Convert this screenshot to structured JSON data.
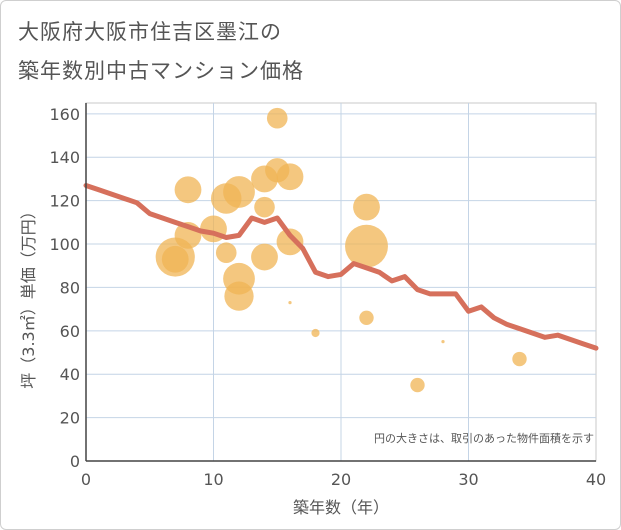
{
  "title": {
    "line1": "大阪府大阪市住吉区墨江の",
    "line2": "築年数別中古マンション価格"
  },
  "colors": {
    "bubble": "#f0b454",
    "line": "#d6705c",
    "grid": "#c4d4e6",
    "plot_border": "#c8c8c8",
    "text": "#555555"
  },
  "chart_data": {
    "type": "scatter",
    "xlabel": "築年数（年）",
    "ylabel": "坪（3.3㎡）単価（万円）",
    "xlim": [
      0,
      40
    ],
    "ylim": [
      0,
      165
    ],
    "xticks": [
      0,
      10,
      20,
      30,
      40
    ],
    "yticks": [
      0,
      20,
      40,
      60,
      80,
      100,
      120,
      140,
      160
    ],
    "grid": true,
    "note": "円の大きさは、取引のあった物件面積を示す",
    "bubbles": [
      {
        "x": 7,
        "y": 94,
        "size": 3
      },
      {
        "x": 7,
        "y": 93,
        "size": 2
      },
      {
        "x": 8,
        "y": 125,
        "size": 2
      },
      {
        "x": 8,
        "y": 104,
        "size": 2
      },
      {
        "x": 10,
        "y": 107,
        "size": 2
      },
      {
        "x": 11,
        "y": 121,
        "size": 2.3
      },
      {
        "x": 11,
        "y": 96,
        "size": 1.5
      },
      {
        "x": 12,
        "y": 124,
        "size": 2.4
      },
      {
        "x": 12,
        "y": 84,
        "size": 2.4
      },
      {
        "x": 12,
        "y": 76,
        "size": 2.2
      },
      {
        "x": 14,
        "y": 130,
        "size": 2
      },
      {
        "x": 14,
        "y": 117,
        "size": 1.5
      },
      {
        "x": 14,
        "y": 94,
        "size": 2
      },
      {
        "x": 15,
        "y": 158,
        "size": 1.5
      },
      {
        "x": 15,
        "y": 134,
        "size": 1.8
      },
      {
        "x": 16,
        "y": 131,
        "size": 2
      },
      {
        "x": 16,
        "y": 101,
        "size": 2
      },
      {
        "x": 16,
        "y": 73,
        "size": 0.1
      },
      {
        "x": 18,
        "y": 59,
        "size": 0.5
      },
      {
        "x": 22,
        "y": 117,
        "size": 2
      },
      {
        "x": 22,
        "y": 99,
        "size": 3.3
      },
      {
        "x": 22,
        "y": 66,
        "size": 1
      },
      {
        "x": 26,
        "y": 35,
        "size": 1
      },
      {
        "x": 28,
        "y": 55,
        "size": 0.1
      },
      {
        "x": 34,
        "y": 47,
        "size": 1
      }
    ],
    "series": [
      {
        "x": [
          0,
          1,
          2,
          3,
          4,
          5,
          6,
          7,
          8,
          9,
          10,
          11,
          12,
          13,
          14,
          15,
          16,
          17,
          18,
          19,
          20,
          21,
          22,
          23,
          24,
          25,
          26,
          27,
          28,
          29,
          30,
          31,
          32,
          33,
          34,
          35,
          36,
          37,
          38,
          39,
          40
        ],
        "values": [
          127,
          125,
          123,
          121,
          119,
          114,
          112,
          110,
          108,
          106,
          105,
          103,
          104,
          112,
          110,
          112,
          104,
          98,
          87,
          85,
          86,
          91,
          89,
          87,
          83,
          85,
          79,
          77,
          77,
          77,
          69,
          71,
          66,
          63,
          61,
          59,
          57,
          58,
          56,
          54,
          52
        ]
      }
    ]
  }
}
